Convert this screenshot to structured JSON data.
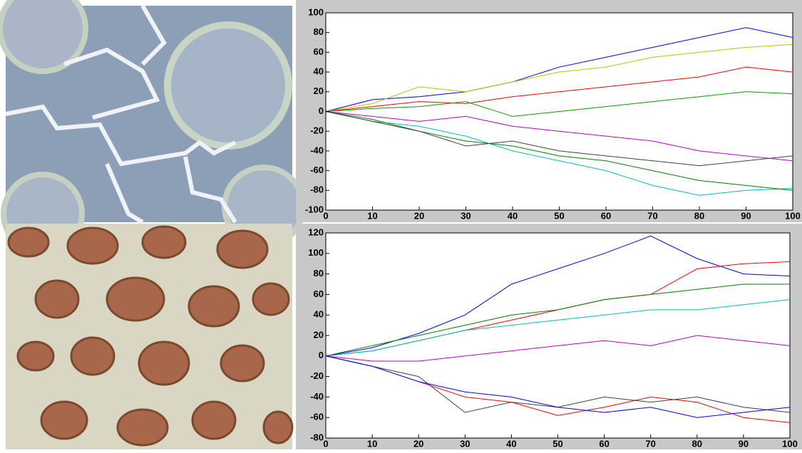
{
  "chart_data": [
    {
      "type": "line",
      "x": [
        0,
        10,
        20,
        30,
        40,
        50,
        60,
        70,
        80,
        90,
        100
      ],
      "xlim": [
        0,
        100
      ],
      "xticks": [
        0,
        10,
        20,
        30,
        40,
        50,
        60,
        70,
        80,
        90,
        100
      ],
      "ylim": [
        -100,
        100
      ],
      "yticks": [
        -100,
        -80,
        -60,
        -40,
        -20,
        0,
        20,
        40,
        60,
        80,
        100
      ],
      "series": [
        {
          "color": "#0000ff",
          "values": [
            0,
            12,
            15,
            20,
            30,
            45,
            55,
            65,
            75,
            85,
            75
          ]
        },
        {
          "color": "#00bfbf",
          "values": [
            0,
            -10,
            -15,
            -25,
            -40,
            -50,
            -60,
            -75,
            -85,
            -80,
            -78
          ]
        },
        {
          "color": "#008000",
          "values": [
            0,
            -8,
            -20,
            -30,
            -35,
            -45,
            -50,
            -60,
            -70,
            -75,
            -80
          ]
        },
        {
          "color": "#ff0000",
          "values": [
            0,
            5,
            10,
            8,
            15,
            20,
            25,
            30,
            35,
            45,
            40
          ]
        },
        {
          "color": "#bf00bf",
          "values": [
            0,
            -5,
            -10,
            -5,
            -15,
            -20,
            -25,
            -30,
            -40,
            -45,
            -50
          ]
        },
        {
          "color": "#bfbf00",
          "values": [
            0,
            8,
            25,
            20,
            30,
            40,
            45,
            55,
            60,
            65,
            68
          ]
        },
        {
          "color": "#404040",
          "values": [
            0,
            -10,
            -20,
            -35,
            -30,
            -40,
            -45,
            -50,
            -55,
            -50,
            -45
          ]
        },
        {
          "color": "#00a000",
          "values": [
            0,
            3,
            5,
            10,
            -5,
            0,
            5,
            10,
            15,
            20,
            18
          ]
        }
      ]
    },
    {
      "type": "line",
      "x": [
        0,
        10,
        20,
        30,
        40,
        50,
        60,
        70,
        80,
        90,
        100
      ],
      "xlim": [
        0,
        100
      ],
      "xticks": [
        0,
        10,
        20,
        30,
        40,
        50,
        60,
        70,
        80,
        90,
        100
      ],
      "ylim": [
        -80,
        120
      ],
      "yticks": [
        -80,
        -60,
        -40,
        -20,
        0,
        20,
        40,
        60,
        80,
        100,
        120
      ],
      "series": [
        {
          "color": "#0000ff",
          "values": [
            0,
            8,
            22,
            40,
            70,
            85,
            100,
            117,
            95,
            80,
            78
          ]
        },
        {
          "color": "#ff0000",
          "values": [
            0,
            -10,
            -25,
            -40,
            -45,
            -58,
            -50,
            -40,
            -45,
            -60,
            -65
          ]
        },
        {
          "color": "#ff0000",
          "values": [
            0,
            5,
            15,
            25,
            35,
            45,
            55,
            60,
            85,
            90,
            92
          ]
        },
        {
          "color": "#404040",
          "values": [
            0,
            -10,
            -20,
            -55,
            -45,
            -50,
            -40,
            -45,
            -40,
            -50,
            -55
          ]
        },
        {
          "color": "#0000ff",
          "values": [
            0,
            -10,
            -25,
            -35,
            -40,
            -50,
            -55,
            -50,
            -60,
            -55,
            -50
          ]
        },
        {
          "color": "#008000",
          "values": [
            0,
            10,
            20,
            30,
            40,
            45,
            55,
            60,
            65,
            70,
            70
          ]
        },
        {
          "color": "#00bfbf",
          "values": [
            0,
            5,
            15,
            25,
            30,
            35,
            40,
            45,
            45,
            50,
            55
          ]
        },
        {
          "color": "#bf00bf",
          "values": [
            0,
            -5,
            -5,
            0,
            5,
            10,
            15,
            10,
            20,
            15,
            10
          ]
        }
      ]
    }
  ]
}
